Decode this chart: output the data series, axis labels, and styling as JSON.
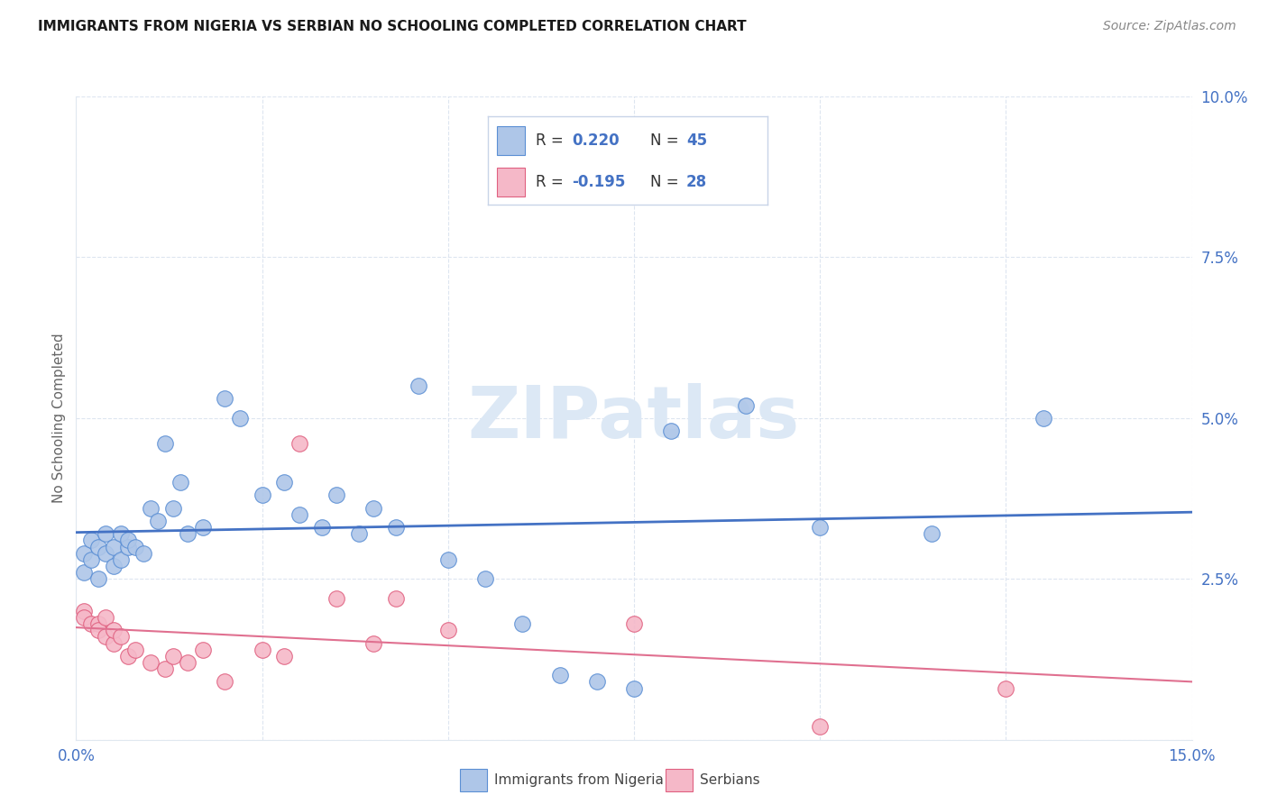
{
  "title": "IMMIGRANTS FROM NIGERIA VS SERBIAN NO SCHOOLING COMPLETED CORRELATION CHART",
  "source": "Source: ZipAtlas.com",
  "ylabel": "No Schooling Completed",
  "xlim": [
    0.0,
    0.15
  ],
  "ylim": [
    0.0,
    0.1
  ],
  "xtick_positions": [
    0.0,
    0.025,
    0.05,
    0.075,
    0.1,
    0.125,
    0.15
  ],
  "xtick_labels": [
    "0.0%",
    "",
    "",
    "",
    "",
    "",
    "15.0%"
  ],
  "ytick_positions": [
    0.0,
    0.025,
    0.05,
    0.075,
    0.1
  ],
  "ytick_labels": [
    "",
    "2.5%",
    "5.0%",
    "7.5%",
    "10.0%"
  ],
  "nigeria_color": "#aec6e8",
  "serbian_color": "#f5b8c8",
  "nigeria_edge_color": "#5b8fd4",
  "serbian_edge_color": "#e06080",
  "nigeria_line_color": "#4472c4",
  "serbian_line_color": "#e07090",
  "nigeria_R": "0.220",
  "nigeria_N": "45",
  "serbian_R": "-0.195",
  "serbian_N": "28",
  "nigeria_scatter_x": [
    0.001,
    0.001,
    0.002,
    0.002,
    0.003,
    0.003,
    0.004,
    0.004,
    0.005,
    0.005,
    0.006,
    0.006,
    0.007,
    0.007,
    0.008,
    0.009,
    0.01,
    0.011,
    0.012,
    0.013,
    0.014,
    0.015,
    0.017,
    0.02,
    0.022,
    0.025,
    0.028,
    0.03,
    0.033,
    0.035,
    0.038,
    0.04,
    0.043,
    0.046,
    0.05,
    0.055,
    0.06,
    0.065,
    0.07,
    0.075,
    0.08,
    0.09,
    0.1,
    0.115,
    0.13
  ],
  "nigeria_scatter_y": [
    0.026,
    0.029,
    0.028,
    0.031,
    0.025,
    0.03,
    0.029,
    0.032,
    0.027,
    0.03,
    0.028,
    0.032,
    0.03,
    0.031,
    0.03,
    0.029,
    0.036,
    0.034,
    0.046,
    0.036,
    0.04,
    0.032,
    0.033,
    0.053,
    0.05,
    0.038,
    0.04,
    0.035,
    0.033,
    0.038,
    0.032,
    0.036,
    0.033,
    0.055,
    0.028,
    0.025,
    0.018,
    0.01,
    0.009,
    0.008,
    0.048,
    0.052,
    0.033,
    0.032,
    0.05
  ],
  "serbian_scatter_x": [
    0.001,
    0.001,
    0.002,
    0.003,
    0.003,
    0.004,
    0.004,
    0.005,
    0.005,
    0.006,
    0.007,
    0.008,
    0.01,
    0.012,
    0.013,
    0.015,
    0.017,
    0.02,
    0.025,
    0.028,
    0.03,
    0.035,
    0.04,
    0.043,
    0.05,
    0.075,
    0.1,
    0.125
  ],
  "serbian_scatter_y": [
    0.02,
    0.019,
    0.018,
    0.018,
    0.017,
    0.016,
    0.019,
    0.015,
    0.017,
    0.016,
    0.013,
    0.014,
    0.012,
    0.011,
    0.013,
    0.012,
    0.014,
    0.009,
    0.014,
    0.013,
    0.046,
    0.022,
    0.015,
    0.022,
    0.017,
    0.018,
    0.002,
    0.008
  ],
  "background_color": "#ffffff",
  "grid_color": "#dde5f0",
  "watermark_text": "ZIPatlas",
  "watermark_color": "#dce8f5",
  "legend_border_color": "#c8d4e8",
  "legend_color_text": "#4472c4",
  "legend_label_color": "#333333"
}
